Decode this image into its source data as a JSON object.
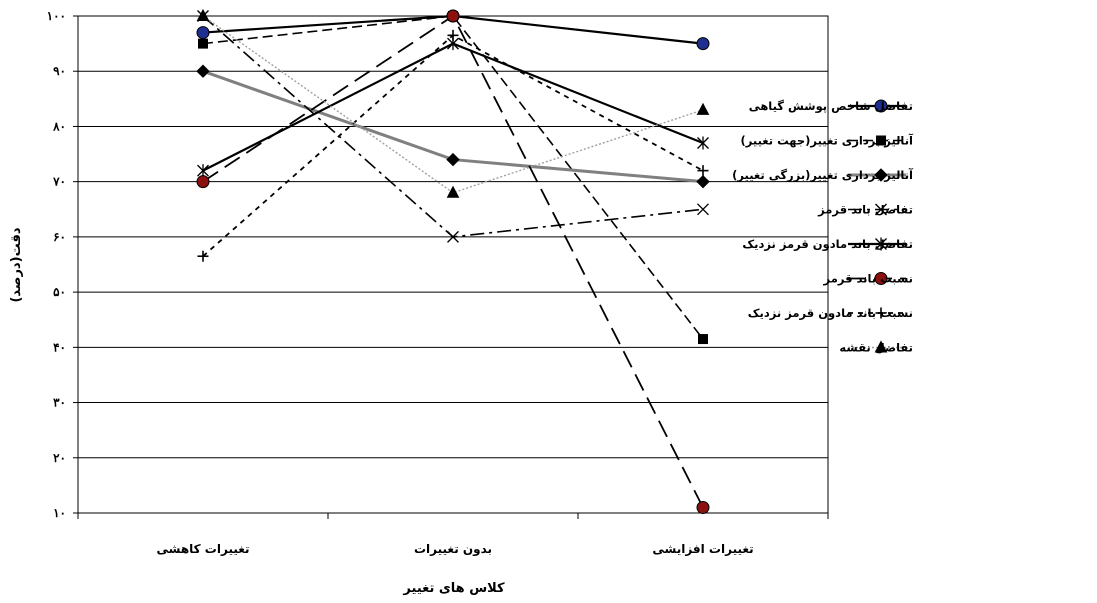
{
  "chart_data": {
    "type": "line",
    "xlabel": "کلاس های تغییر",
    "ylabel": "دقت(درصد)",
    "ylim": [
      10,
      100
    ],
    "yticks": [
      10,
      20,
      30,
      40,
      50,
      60,
      70,
      80,
      90,
      100
    ],
    "ytick_labels": [
      "۱۰",
      "۲۰",
      "۳۰",
      "۴۰",
      "۵۰",
      "۶۰",
      "۷۰",
      "۸۰",
      "۹۰",
      "۱۰۰"
    ],
    "categories": [
      "تغییرات کاهشی",
      "بدون تغییرات",
      "تغییرات افزایشی"
    ],
    "grid": true,
    "legend_position": "right",
    "series": [
      {
        "name": "تفاضل شاخص پوشش گیاهی",
        "values": [
          97,
          100,
          95
        ],
        "color": "#000000",
        "marker": "circle",
        "marker_fill": "#1f2f8f",
        "dash": "",
        "width": 2.2
      },
      {
        "name": "آنالیز برداری تغییر(جهت تغییر)",
        "values": [
          95,
          100,
          41.5
        ],
        "color": "#000000",
        "marker": "square",
        "marker_fill": "#000000",
        "dash": "10,5",
        "width": 1.6
      },
      {
        "name": "آنالیز برداری تغییر(بزرگی تغییر)",
        "values": [
          90,
          74,
          70
        ],
        "color": "#808080",
        "marker": "diamond",
        "marker_fill": "#000000",
        "dash": "",
        "width": 3
      },
      {
        "name": "تفاضل باند قرمز",
        "values": [
          100,
          60,
          65
        ],
        "color": "#000000",
        "marker": "x",
        "marker_fill": "#000000",
        "dash": "14,5,3,5",
        "width": 1.6
      },
      {
        "name": "تفاضل باند مادون قرمز نزدیک",
        "values": [
          72,
          95,
          77
        ],
        "color": "#000000",
        "marker": "asterisk",
        "marker_fill": "#000000",
        "dash": "",
        "width": 2.2
      },
      {
        "name": "نسبت  باند قرمز",
        "values": [
          70,
          100,
          11
        ],
        "color": "#000000",
        "marker": "circle",
        "marker_fill": "#8b1010",
        "dash": "18,8",
        "width": 1.8
      },
      {
        "name": "نسبت باند مادون قرمز نزدیک",
        "values": [
          56.5,
          96.5,
          72
        ],
        "color": "#000000",
        "marker": "plus",
        "marker_fill": "#000000",
        "dash": "5,5",
        "width": 1.8
      },
      {
        "name": "تفاضل نقشه",
        "values": [
          100,
          68,
          83
        ],
        "color": "#a0a0a0",
        "marker": "triangle",
        "marker_fill": "#000000",
        "dash": "2,2",
        "width": 1.4
      }
    ]
  }
}
